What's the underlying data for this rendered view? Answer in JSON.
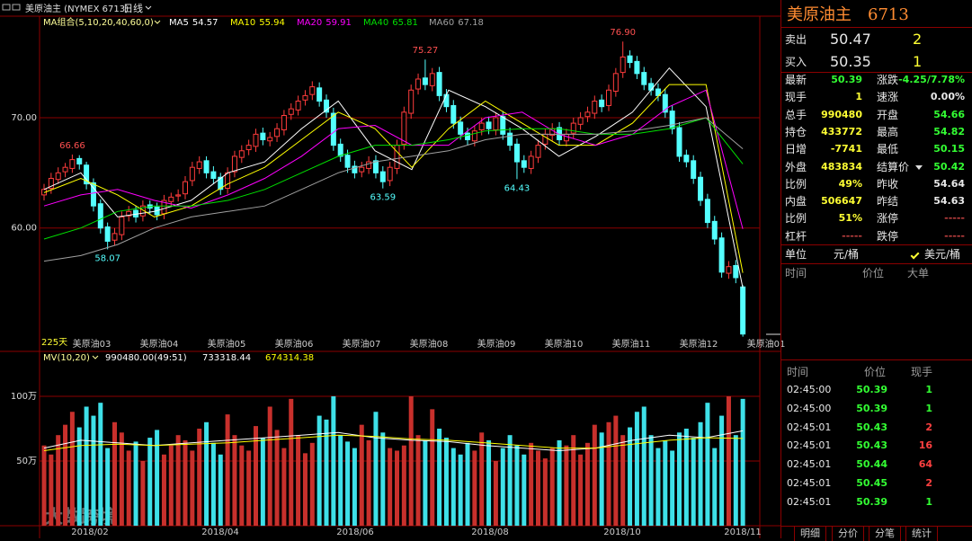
{
  "toolbar": {
    "title": "美原油主 (NYMEX 6713)",
    "period": "日线"
  },
  "watermark": "大数跨境",
  "chart_data": [
    {
      "type": "candlestick",
      "indicator": "MA组合(5,10,20,40,60,0)",
      "range_label": "225天",
      "up_color": "#ff3c3c",
      "down_color": "#54ffff",
      "ylim": [
        48.9,
        79.2
      ],
      "yticks": [
        {
          "value": 60,
          "label": "60.00"
        },
        {
          "value": 70,
          "label": "70.00"
        }
      ],
      "xtick_labels": [
        "美原油03",
        "美原油04",
        "美原油05",
        "美原油06",
        "美原油07",
        "美原油08",
        "美原油09",
        "美原油10",
        "美原油11",
        "美原油12",
        "美原油01"
      ],
      "open": [
        63,
        63.6,
        64.4,
        65.1,
        65.4,
        66.3,
        65.7,
        64.1,
        62.2,
        60.1,
        58.9,
        59.4,
        61.1,
        61.6,
        61.1,
        62.1,
        61.9,
        61.3,
        62.4,
        62.9,
        63.1,
        64.3,
        65.4,
        66.1,
        65.1,
        64.6,
        63.6,
        65.1,
        66.4,
        67.1,
        67.4,
        68.6,
        67.9,
        68.3,
        68.9,
        70.3,
        70.7,
        71.6,
        72.1,
        72.7,
        71.6,
        70.4,
        67.6,
        66.6,
        65.6,
        65.1,
        65.4,
        66.1,
        65.1,
        64.3,
        65.4,
        67.6,
        70.4,
        72.6,
        73.6,
        72.9,
        74.1,
        72.1,
        71.1,
        69.6,
        68.6,
        67.9,
        68.9,
        69.6,
        68.9,
        70.1,
        68.6,
        67.6,
        66.1,
        65.4,
        66.4,
        67.6,
        68.4,
        69.1,
        67.9,
        68.6,
        69.4,
        70.1,
        70.4,
        71.6,
        71.1,
        72.4,
        74.1,
        75.6,
        75.1,
        74.1,
        73.1,
        72.6,
        72.1,
        70.6,
        69.1,
        66.6,
        66.1,
        64.6,
        62.6,
        60.6,
        59.1,
        55.9,
        56.6,
        54.66
      ],
      "high": [
        64,
        65,
        65.5,
        65.9,
        66.66,
        66.6,
        66,
        64.5,
        62.6,
        60.5,
        60,
        61.5,
        62,
        62,
        62.5,
        62.5,
        62.3,
        63,
        63.2,
        63.5,
        64.7,
        66,
        66.5,
        66.5,
        65.6,
        65,
        65.5,
        67,
        67.5,
        68,
        69,
        69.1,
        68.7,
        69.5,
        70.7,
        71.3,
        72,
        72.5,
        73.3,
        73.2,
        72.1,
        70.9,
        68.1,
        67.1,
        66.1,
        66,
        66.5,
        66.6,
        65.6,
        66,
        68,
        71,
        73,
        74,
        75.27,
        74.5,
        74.6,
        72.6,
        71.6,
        70.1,
        69.1,
        69.3,
        70,
        70.1,
        70.5,
        70.6,
        69.1,
        68.1,
        66.6,
        67,
        68,
        69,
        69.5,
        69.6,
        69,
        70,
        70.5,
        71,
        72,
        72.1,
        73,
        74.5,
        76.9,
        76.1,
        75.6,
        74.6,
        73.6,
        73.1,
        72.6,
        71.1,
        69.6,
        67.1,
        66.6,
        65.1,
        63.1,
        61.1,
        59.6,
        57,
        57.1,
        54.82
      ],
      "low": [
        62.5,
        63.1,
        64,
        64.6,
        65,
        65.3,
        63.5,
        61.5,
        59.5,
        58.07,
        58.4,
        58.9,
        60.6,
        60.5,
        60.6,
        61.3,
        60.7,
        60.8,
        61.9,
        62.4,
        62.6,
        63.8,
        64.9,
        64.5,
        64,
        63,
        63.1,
        64.6,
        65.9,
        66.6,
        66.9,
        67.5,
        67.4,
        67.8,
        68.4,
        69.8,
        70.2,
        71.1,
        71.6,
        71,
        70,
        67,
        66,
        65,
        64.5,
        64.6,
        64.9,
        64.5,
        63.59,
        63.8,
        64.9,
        67.1,
        69.9,
        72.1,
        72.5,
        72.4,
        71.5,
        70.5,
        69,
        68,
        67.5,
        67.4,
        68.4,
        68.5,
        68.4,
        68,
        67,
        64.43,
        65,
        64.9,
        65.9,
        67.1,
        67.9,
        67.5,
        67.4,
        68.1,
        68.9,
        69.6,
        69.9,
        70.5,
        70.6,
        71.9,
        73.6,
        74.5,
        73.5,
        72.5,
        72,
        71.5,
        70,
        68.5,
        66,
        65.5,
        64,
        62,
        60,
        58.5,
        55.5,
        55.4,
        55,
        50.15
      ],
      "close": [
        63.5,
        64.5,
        65,
        65.5,
        66.2,
        65.8,
        64,
        62,
        60,
        58.8,
        59.5,
        61,
        61.5,
        61,
        62,
        61.8,
        61.2,
        62.5,
        62.8,
        63,
        64.2,
        65.5,
        66,
        65,
        64.5,
        63.5,
        65,
        66.5,
        67,
        67.5,
        68.5,
        68,
        68.2,
        69,
        70.2,
        70.8,
        71.5,
        72,
        72.8,
        71.5,
        70.5,
        67.5,
        66.5,
        65.5,
        65,
        65.5,
        66,
        65,
        64.2,
        65.5,
        67.5,
        70.5,
        72.5,
        73.5,
        73,
        74,
        72,
        71,
        69.5,
        68.5,
        68,
        68.8,
        69.5,
        69,
        70,
        68.5,
        67.5,
        66,
        65.5,
        66.5,
        67.5,
        68.5,
        69,
        68,
        68.5,
        69.5,
        70,
        70.5,
        71.5,
        71,
        72.5,
        74,
        75.5,
        75,
        74,
        73,
        72.5,
        72,
        70.5,
        69,
        66.5,
        66,
        64.5,
        62.5,
        60.5,
        59,
        56,
        56.5,
        55.5,
        50.39
      ],
      "annotations": [
        {
          "value": 66.66,
          "label": "66.66"
        },
        {
          "value": 58.07,
          "label": "58.07"
        },
        {
          "value": 63.59,
          "label": "63.59"
        },
        {
          "value": 75.27,
          "label": "75.27"
        },
        {
          "value": 64.43,
          "label": "64.43"
        },
        {
          "value": 76.9,
          "label": "76.90"
        }
      ],
      "series": [
        {
          "name": "MA5",
          "last": 54.57,
          "color": "#ffffff",
          "values": [
            63.5,
            65,
            61,
            61.5,
            62.5,
            65,
            66,
            69,
            71.5,
            67,
            65.3,
            72.5,
            71,
            69,
            66.5,
            68.3,
            70.5,
            74.5,
            71,
            54.57
          ]
        },
        {
          "name": "MA10",
          "last": 55.94,
          "color": "#ffff00",
          "values": [
            63.2,
            64.5,
            63,
            61,
            62,
            64,
            65.5,
            68,
            70.5,
            69,
            65.5,
            69,
            71.5,
            69.5,
            67.5,
            67.5,
            69.5,
            73,
            73,
            55.94
          ]
        },
        {
          "name": "MA20",
          "last": 59.91,
          "color": "#ff00ff",
          "values": [
            62,
            63,
            63.5,
            62.5,
            61.8,
            63,
            64.5,
            66.5,
            69,
            69.3,
            67.5,
            67.5,
            70,
            70.5,
            68.5,
            67.5,
            68.5,
            71,
            72.5,
            59.91
          ]
        },
        {
          "name": "MA40",
          "last": 65.81,
          "color": "#00e000",
          "values": [
            59,
            60,
            61.5,
            62,
            62,
            62.5,
            63.5,
            65,
            66.5,
            67.5,
            67.5,
            68,
            68.8,
            69,
            69,
            68.5,
            68.5,
            69,
            70,
            65.81
          ]
        },
        {
          "name": "MA60",
          "last": 67.18,
          "color": "#a0a0a0",
          "values": [
            57,
            57.5,
            58.5,
            60,
            61,
            61.5,
            62,
            63.5,
            65,
            66,
            66.5,
            67,
            68,
            68.5,
            68.5,
            68.5,
            68.8,
            69.3,
            70,
            67.18
          ]
        }
      ]
    },
    {
      "type": "bar",
      "indicator": "MV(10,20)",
      "summary": "990480.00(49:51)",
      "up_color": "#c8302c",
      "down_color": "#3ee0e8",
      "ylim": [
        0,
        134
      ],
      "yticks": [
        {
          "value": 50,
          "label": "50万"
        },
        {
          "value": 100,
          "label": "100万"
        }
      ],
      "xtick_labels": [
        "2018/02",
        "2018/04",
        "2018/06",
        "2018/08",
        "2018/10",
        "2018/11"
      ],
      "values": [
        62,
        55,
        70,
        78,
        88,
        76,
        92,
        85,
        95,
        60,
        80,
        72,
        58,
        65,
        50,
        68,
        74,
        55,
        62,
        70,
        66,
        58,
        75,
        80,
        64,
        55,
        86,
        70,
        62,
        58,
        77,
        68,
        92,
        74,
        60,
        98,
        70,
        56,
        64,
        85,
        82,
        100,
        70,
        65,
        60,
        78,
        66,
        88,
        72,
        60,
        58,
        62,
        100,
        70,
        66,
        90,
        75,
        68,
        60,
        55,
        64,
        58,
        72,
        66,
        50,
        60,
        70,
        62,
        55,
        64,
        58,
        52,
        60,
        66,
        62,
        70,
        55,
        64,
        78,
        72,
        80,
        85,
        70,
        76,
        88,
        92,
        70,
        60,
        66,
        58,
        72,
        75,
        68,
        80,
        95,
        60,
        85,
        100,
        70,
        98
      ],
      "lines": [
        {
          "legend_value": "733318.44",
          "color": "#ffffff",
          "values": [
            60,
            66,
            64,
            62,
            64,
            66,
            68,
            70,
            72,
            68,
            66,
            65,
            62,
            60,
            58,
            60,
            66,
            70,
            68,
            73.33
          ]
        },
        {
          "legend_value": "674314.38",
          "color": "#ffff00",
          "values": [
            58,
            62,
            63,
            62,
            63,
            64,
            66,
            68,
            70,
            69,
            67,
            66,
            64,
            62,
            60,
            60,
            63,
            66,
            68,
            67.43
          ]
        }
      ]
    }
  ],
  "quote_panel": {
    "name": "美原油主",
    "code": "6713",
    "ask": [
      "卖出",
      "50.47",
      "2"
    ],
    "bid": [
      "买入",
      "50.35",
      "1"
    ],
    "rows": [
      [
        "最新",
        "50.39",
        "涨跌",
        "-4.25/7.78%"
      ],
      [
        "现手",
        "1",
        "速涨",
        "0.00%"
      ],
      [
        "总手",
        "990480",
        "开盘",
        "54.66"
      ],
      [
        "持仓",
        "433772",
        "最高",
        "54.82"
      ],
      [
        "日增",
        "-7741",
        "最低",
        "50.15"
      ],
      [
        "外盘",
        "483834",
        "结算价",
        "50.42"
      ],
      [
        "比例",
        "49%",
        "昨收",
        "54.64"
      ],
      [
        "内盘",
        "506647",
        "昨结",
        "54.63"
      ],
      [
        "比例",
        "51%",
        "涨停",
        "-----"
      ],
      [
        "杠杆",
        "-----",
        "跌停",
        "-----"
      ]
    ],
    "unit": [
      "单位",
      "元/桶",
      "美元/桶"
    ],
    "big_orders_header": [
      "时间",
      "价位",
      "大单"
    ]
  },
  "trades": {
    "header": [
      "时间",
      "价位",
      "现手"
    ],
    "rows": [
      [
        "02:45:00",
        "50.39",
        "1"
      ],
      [
        "02:45:00",
        "50.39",
        "1"
      ],
      [
        "02:45:01",
        "50.43",
        "2"
      ],
      [
        "02:45:01",
        "50.43",
        "16"
      ],
      [
        "02:45:01",
        "50.44",
        "64"
      ],
      [
        "02:45:01",
        "50.45",
        "2"
      ],
      [
        "02:45:01",
        "50.39",
        "1"
      ]
    ]
  },
  "tabs": [
    "明细",
    "分价",
    "分笔",
    "统计"
  ]
}
